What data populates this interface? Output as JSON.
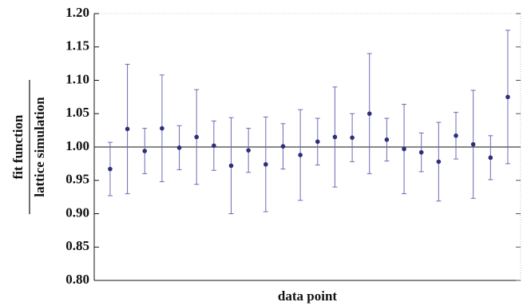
{
  "chart_data": {
    "type": "errorbar",
    "xlabel": "data point",
    "ylabel_numerator": "fit function",
    "ylabel_denominator": "lattice simulation",
    "x": [
      1,
      2,
      3,
      4,
      5,
      6,
      7,
      8,
      9,
      10,
      11,
      12,
      13,
      14,
      15,
      16,
      17,
      18,
      19,
      20,
      21,
      22,
      23,
      24
    ],
    "values": [
      0.967,
      1.027,
      0.994,
      1.028,
      0.999,
      1.015,
      1.002,
      0.972,
      0.995,
      0.974,
      1.001,
      0.988,
      1.008,
      1.015,
      1.014,
      1.05,
      1.011,
      0.997,
      0.992,
      0.978,
      1.017,
      1.004,
      0.984,
      1.075
    ],
    "errors": [
      0.04,
      0.097,
      0.034,
      0.08,
      0.033,
      0.071,
      0.037,
      0.072,
      0.033,
      0.071,
      0.034,
      0.068,
      0.035,
      0.075,
      0.036,
      0.09,
      0.032,
      0.067,
      0.029,
      0.059,
      0.035,
      0.081,
      0.033,
      0.1
    ],
    "color": "#2e2e7a",
    "error_color": "#6b6bb5",
    "reference_line": 1,
    "xlim": [
      0.08,
      24.74
    ],
    "ylim": [
      0.8,
      1.2
    ],
    "yticks": [
      {
        "value": 0.8,
        "label": "0.80"
      },
      {
        "value": 0.85,
        "label": "0.85"
      },
      {
        "value": 0.9,
        "label": "0.90"
      },
      {
        "value": 0.95,
        "label": "0.95"
      },
      {
        "value": 1.0,
        "label": "1.00"
      },
      {
        "value": 1.05,
        "label": "1.05"
      },
      {
        "value": 1.1,
        "label": "1.10"
      },
      {
        "value": 1.15,
        "label": "1.15"
      },
      {
        "value": 1.2,
        "label": "1.20"
      }
    ]
  }
}
